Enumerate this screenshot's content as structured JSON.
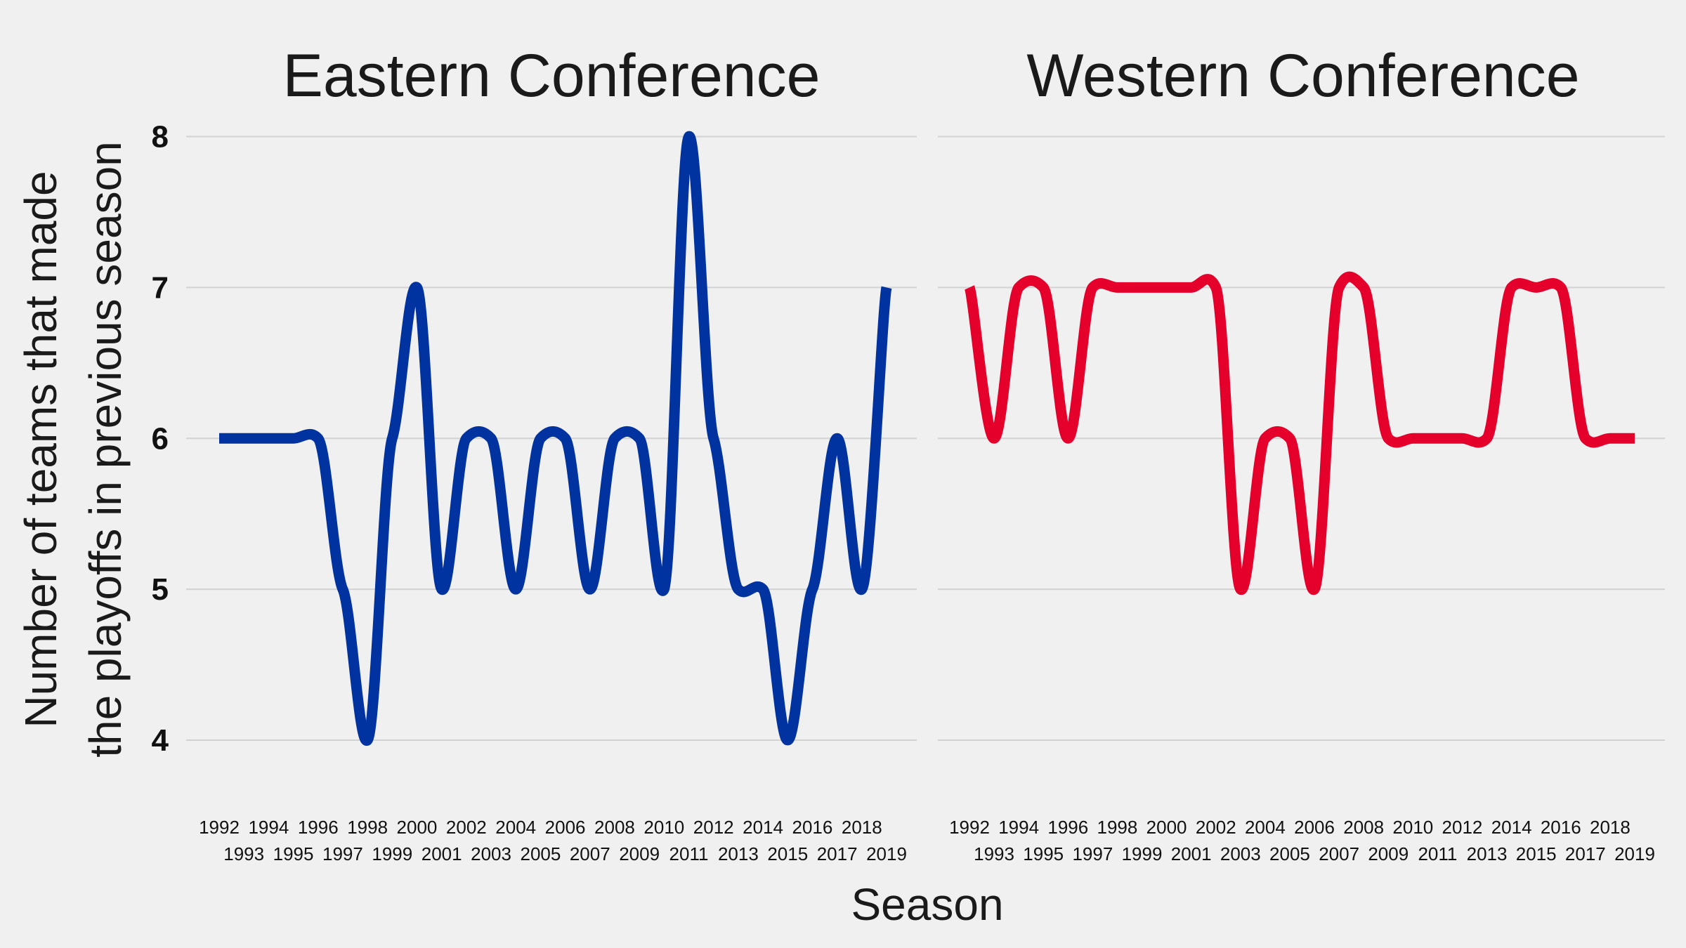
{
  "chart_data": {
    "type": "line",
    "ylabel_line1": "Number of teams that made",
    "ylabel_line2": "the playoffs in previous season",
    "xlabel": "Season",
    "ylim": [
      3.6,
      8.3
    ],
    "yticks": [
      4,
      5,
      6,
      7,
      8
    ],
    "grid": true,
    "x": [
      1992,
      1993,
      1994,
      1995,
      1996,
      1997,
      1998,
      1999,
      2000,
      2001,
      2002,
      2003,
      2004,
      2005,
      2006,
      2007,
      2008,
      2009,
      2010,
      2011,
      2012,
      2013,
      2014,
      2015,
      2016,
      2017,
      2018,
      2019
    ],
    "panels": [
      {
        "title": "Eastern Conference",
        "color": "#0033a0",
        "values": [
          6,
          6,
          6,
          6,
          6,
          5,
          4,
          6,
          7,
          5,
          6,
          6,
          5,
          6,
          6,
          5,
          6,
          6,
          5,
          8,
          6,
          5,
          5,
          4,
          5,
          6,
          5,
          7
        ]
      },
      {
        "title": "Western Conference",
        "color": "#e4002b",
        "values": [
          7,
          6,
          7,
          7,
          6,
          7,
          7,
          7,
          7,
          7,
          7,
          5,
          6,
          6,
          5,
          7,
          7,
          6,
          6,
          6,
          6,
          6,
          7,
          7,
          7,
          6,
          6,
          6
        ]
      }
    ]
  }
}
